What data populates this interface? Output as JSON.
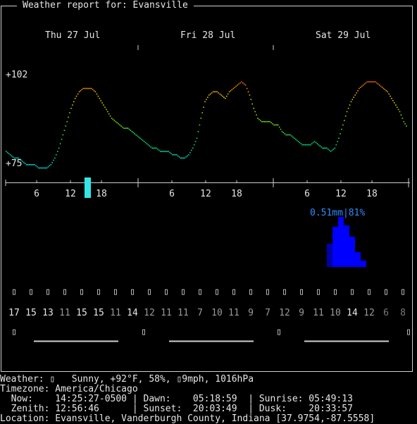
{
  "window": {
    "title": "Weather report for: Evansville"
  },
  "days": [
    {
      "label": "Thu 27 Jul"
    },
    {
      "label": "Fri 28 Jul"
    },
    {
      "label": "Sat 29 Jul"
    }
  ],
  "temp_axis": {
    "high_label": "+102",
    "low_label": "+75"
  },
  "hour_ticks": [
    "6",
    "12",
    "18",
    "6",
    "12",
    "18",
    "6",
    "12",
    "18"
  ],
  "precip": {
    "label": "0.51mm|81%",
    "color": "#0000ff",
    "label_color": "#2e8bff"
  },
  "weather_icon_name": "unknown-glyph-icon",
  "hourly_codes": [
    "17",
    "15",
    "13",
    "11",
    "15",
    "15",
    "11",
    "14",
    "12",
    "11",
    "11",
    "7",
    "10",
    "11",
    "9",
    "7",
    "12",
    "9",
    "11",
    "10",
    "14",
    "12",
    "6",
    "8"
  ],
  "code_colors": [
    "#e6e6e6",
    "#e6e6e6",
    "#e6e6e6",
    "#9a9a9a",
    "#e6e6e6",
    "#e6e6e6",
    "#9a9a9a",
    "#e6e6e6",
    "#9a9a9a",
    "#9a9a9a",
    "#9a9a9a",
    "#9a9a9a",
    "#9a9a9a",
    "#9a9a9a",
    "#9a9a9a",
    "#9a9a9a",
    "#9a9a9a",
    "#9a9a9a",
    "#9a9a9a",
    "#9a9a9a",
    "#e6e6e6",
    "#9a9a9a",
    "#7a7a7a",
    "#7a7a7a"
  ],
  "glyph_char": "▯",
  "status": {
    "line1": "Weather: ▯   Sunny, +92°F, 58%, ▯9mph, 1016hPa",
    "line2": "Timezone: America/Chicago",
    "line3": "  Now:    14:25:27-0500 | Dawn:    05:18:59  | Sunrise: 05:49:13",
    "line4": "  Zenith: 12:56:46      | Sunset:  20:03:49  | Dusk:    20:33:57",
    "line5": "Location: Evansville, Vanderburgh County, Indiana [37.9754,-87.5558]"
  },
  "chart_data": {
    "type": "line",
    "title": "",
    "x": "hourly, Thu 27 Jul 00:00 to Sat 29 Jul 23:00",
    "ylim": [
      75,
      102
    ],
    "series": [
      {
        "values": [
          79,
          78,
          77,
          77,
          76,
          75,
          75,
          75,
          74,
          74,
          74,
          75,
          77,
          80,
          84,
          88,
          92,
          95,
          97,
          98,
          98,
          98,
          97,
          95,
          93,
          91,
          89,
          88,
          87,
          86,
          86,
          85,
          84,
          83,
          82,
          81,
          80,
          80,
          79,
          79,
          79,
          78,
          78,
          77,
          77,
          78,
          80,
          83,
          89,
          94,
          96,
          97,
          97,
          96,
          95,
          97,
          98,
          99,
          100,
          99,
          96,
          92,
          89,
          88,
          88,
          88,
          87,
          87,
          85,
          84,
          84,
          83,
          82,
          81,
          81,
          81,
          82,
          81,
          80,
          80,
          79,
          80,
          83,
          87,
          91,
          94,
          96,
          98,
          99,
          100,
          100,
          100,
          99,
          98,
          97,
          95,
          93,
          91,
          88,
          86
        ]
      }
    ]
  }
}
